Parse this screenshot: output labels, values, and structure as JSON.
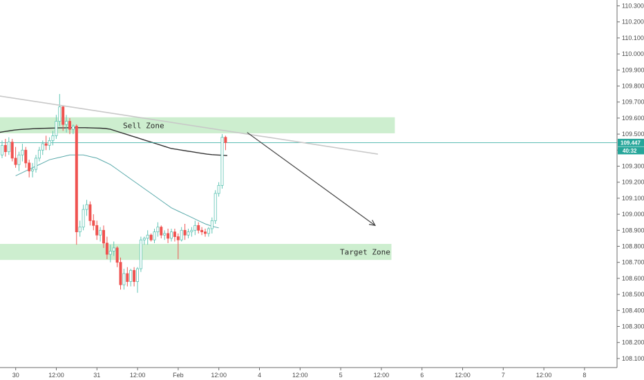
{
  "chart_data": {
    "type": "candlestick",
    "symbol_price_scale": "right",
    "grid": false,
    "y_axis": {
      "range": [
        108.04,
        110.34
      ],
      "ticks": [
        "110.300",
        "110.200",
        "110.100",
        "110.000",
        "109.900",
        "109.800",
        "109.700",
        "109.600",
        "109.500",
        "109.400",
        "109.300",
        "109.200",
        "109.100",
        "109.000",
        "108.900",
        "108.800",
        "108.700",
        "108.600",
        "108.500",
        "108.400",
        "108.300",
        "108.200",
        "108.100"
      ]
    },
    "x_axis": {
      "ticks": [
        {
          "label": "30",
          "bar": 3
        },
        {
          "label": "12:00",
          "bar": 15
        },
        {
          "label": "31",
          "bar": 27
        },
        {
          "label": "12:00",
          "bar": 39
        },
        {
          "label": "Feb",
          "bar": 51
        },
        {
          "label": "12:00",
          "bar": 63
        },
        {
          "label": "4",
          "bar": 75
        },
        {
          "label": "12:00",
          "bar": 87
        },
        {
          "label": "5",
          "bar": 99
        },
        {
          "label": "12:00",
          "bar": 111
        },
        {
          "label": "6",
          "bar": 123
        },
        {
          "label": "12:00",
          "bar": 135
        },
        {
          "label": "7",
          "bar": 147
        },
        {
          "label": "12:00",
          "bar": 159
        },
        {
          "label": "8",
          "bar": 171
        }
      ]
    },
    "colors": {
      "up": "#5fc4b4",
      "down": "#ef5350",
      "zone_fill": "#cdeecf",
      "ma_long": "#333333",
      "ma_short": "#5aaaab",
      "trendline": "#c8c8c8",
      "arrow": "#444444",
      "price_line": "#26a69a"
    },
    "candles": [
      [
        109.37,
        109.46,
        109.35,
        109.43
      ],
      [
        109.43,
        109.47,
        109.36,
        109.39
      ],
      [
        109.39,
        109.48,
        109.37,
        109.45
      ],
      [
        109.45,
        109.47,
        109.33,
        109.35
      ],
      [
        109.35,
        109.42,
        109.29,
        109.31
      ],
      [
        109.31,
        109.39,
        109.27,
        109.37
      ],
      [
        109.37,
        109.44,
        109.33,
        109.4
      ],
      [
        109.4,
        109.42,
        109.29,
        109.32
      ],
      [
        109.32,
        109.34,
        109.23,
        109.27
      ],
      [
        109.27,
        109.32,
        109.23,
        109.28
      ],
      [
        109.28,
        109.37,
        109.26,
        109.35
      ],
      [
        109.35,
        109.42,
        109.33,
        109.4
      ],
      [
        109.4,
        109.46,
        109.37,
        109.44
      ],
      [
        109.44,
        109.49,
        109.4,
        109.43
      ],
      [
        109.43,
        109.48,
        109.4,
        109.46
      ],
      [
        109.46,
        109.52,
        109.43,
        109.49
      ],
      [
        109.49,
        109.62,
        109.47,
        109.58
      ],
      [
        109.58,
        109.75,
        109.55,
        109.67
      ],
      [
        109.67,
        109.68,
        109.52,
        109.56
      ],
      [
        109.56,
        109.62,
        109.51,
        109.58
      ],
      [
        109.58,
        109.6,
        109.5,
        109.53
      ],
      [
        109.53,
        109.56,
        109.5,
        109.55
      ],
      [
        109.55,
        109.56,
        108.81,
        108.89
      ],
      [
        108.89,
        108.96,
        108.86,
        108.92
      ],
      [
        108.92,
        109.06,
        108.9,
        109.03
      ],
      [
        109.03,
        109.09,
        108.99,
        109.06
      ],
      [
        109.06,
        109.08,
        108.93,
        108.96
      ],
      [
        108.96,
        109.0,
        108.9,
        108.93
      ],
      [
        108.93,
        108.96,
        108.84,
        108.87
      ],
      [
        108.87,
        108.92,
        108.83,
        108.9
      ],
      [
        108.9,
        108.93,
        108.79,
        108.82
      ],
      [
        108.82,
        108.86,
        108.72,
        108.75
      ],
      [
        108.75,
        108.81,
        108.7,
        108.77
      ],
      [
        108.77,
        108.83,
        108.74,
        108.79
      ],
      [
        108.79,
        108.8,
        108.67,
        108.7
      ],
      [
        108.7,
        108.73,
        108.53,
        108.56
      ],
      [
        108.56,
        108.66,
        108.53,
        108.63
      ],
      [
        108.63,
        108.67,
        108.55,
        108.58
      ],
      [
        108.58,
        108.66,
        108.55,
        108.65
      ],
      [
        108.65,
        108.67,
        108.55,
        108.58
      ],
      [
        108.58,
        108.67,
        108.51,
        108.66
      ],
      [
        108.66,
        108.86,
        108.64,
        108.84
      ],
      [
        108.84,
        108.86,
        108.81,
        108.85
      ],
      [
        108.85,
        108.9,
        108.81,
        108.87
      ],
      [
        108.87,
        108.88,
        108.83,
        108.84
      ],
      [
        108.84,
        108.91,
        108.82,
        108.89
      ],
      [
        108.89,
        108.95,
        108.86,
        108.92
      ],
      [
        108.92,
        108.93,
        108.85,
        108.87
      ],
      [
        108.87,
        108.9,
        108.84,
        108.88
      ],
      [
        108.88,
        108.91,
        108.82,
        108.85
      ],
      [
        108.85,
        108.91,
        108.83,
        108.89
      ],
      [
        108.89,
        108.91,
        108.83,
        108.86
      ],
      [
        108.86,
        108.88,
        108.72,
        108.84
      ],
      [
        108.84,
        108.92,
        108.83,
        108.9
      ],
      [
        108.9,
        108.94,
        108.84,
        108.87
      ],
      [
        108.87,
        108.91,
        108.85,
        108.89
      ],
      [
        108.89,
        108.92,
        108.86,
        108.9
      ],
      [
        108.9,
        108.96,
        108.87,
        108.93
      ],
      [
        108.93,
        108.95,
        108.88,
        108.9
      ],
      [
        108.9,
        108.92,
        108.87,
        108.89
      ],
      [
        108.89,
        108.91,
        108.86,
        108.88
      ],
      [
        108.88,
        108.92,
        108.86,
        108.91
      ],
      [
        108.91,
        108.98,
        108.88,
        108.96
      ],
      [
        108.96,
        109.15,
        108.94,
        109.13
      ],
      [
        109.13,
        109.2,
        109.11,
        109.18
      ],
      [
        109.18,
        109.5,
        109.16,
        109.48
      ],
      [
        109.48,
        109.49,
        109.4,
        109.447
      ]
    ],
    "ma_long": [
      109.51,
      109.515,
      109.52,
      109.525,
      109.528,
      109.53,
      109.532,
      109.534,
      109.535,
      109.536,
      109.537,
      109.538,
      109.539,
      109.539,
      109.54,
      109.54,
      109.54,
      109.54,
      109.539,
      109.538,
      109.537,
      109.535,
      109.53,
      109.52,
      109.51,
      109.5,
      109.49,
      109.48,
      109.47,
      109.46,
      109.45,
      109.44,
      109.43,
      109.42,
      109.41,
      109.405,
      109.4,
      109.395,
      109.39,
      109.385,
      109.38,
      109.375,
      109.372,
      109.37,
      109.368,
      109.366
    ],
    "ma_short": [
      109.24,
      109.26,
      109.28,
      109.3,
      109.32,
      109.34,
      109.35,
      109.36,
      109.37,
      109.37,
      109.37,
      109.36,
      109.35,
      109.33,
      109.31,
      109.28,
      109.25,
      109.22,
      109.19,
      109.16,
      109.13,
      109.1,
      109.07,
      109.04,
      109.02,
      109.0,
      108.98,
      108.96,
      108.94,
      108.925,
      108.915
    ],
    "last_price": "109.447",
    "countdown": "40:32",
    "annotations": {
      "sell_zone": {
        "label": "Sell Zone",
        "top": 109.605,
        "bottom": 109.505,
        "x_end_bar": 116
      },
      "target_zone": {
        "label": "Target Zone",
        "top": 108.815,
        "bottom": 108.715,
        "x_end_bar": 115
      },
      "trendline": {
        "from": [
          -3,
          109.745
        ],
        "to": [
          111,
          109.375
        ]
      },
      "projection_arrow": {
        "from": [
          63,
          109.51
        ],
        "to": [
          111,
          108.93
        ]
      }
    }
  }
}
